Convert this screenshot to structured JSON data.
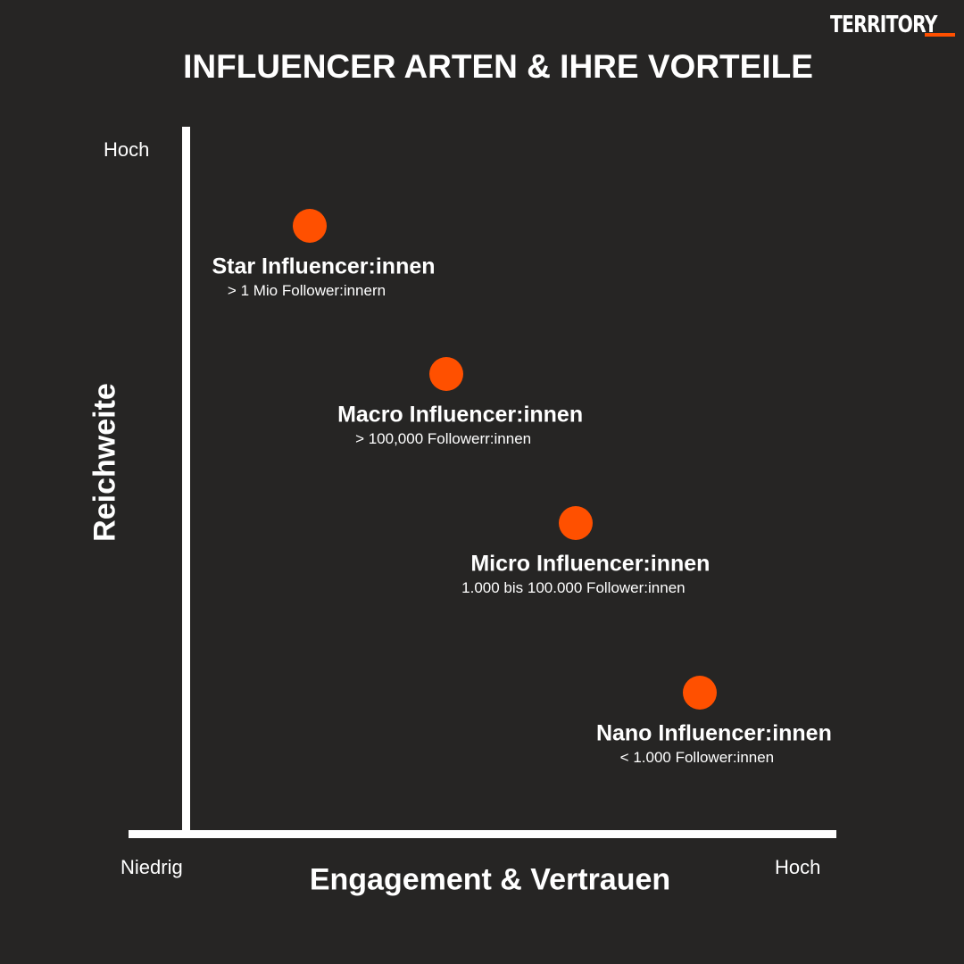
{
  "brand": {
    "logo_text": "TERRITORY",
    "accent": "#ff5000"
  },
  "colors": {
    "background": "#262524",
    "axis": "#ffffff",
    "marker": "#ff5000",
    "text": "#ffffff"
  },
  "chart_data": {
    "type": "scatter",
    "title": "INFLUENCER ARTEN & IHRE VORTEILE",
    "xlabel": "Engagement & Vertrauen",
    "ylabel": "Reichweite",
    "x_ticks": {
      "low": "Niedrig",
      "high": "Hoch"
    },
    "y_ticks": {
      "high": "Hoch"
    },
    "xlim": [
      0,
      1
    ],
    "ylim": [
      0,
      1
    ],
    "grid": false,
    "points": [
      {
        "name": "Star Influencer:innen",
        "detail": "> 1 Mio Follower:innern",
        "x": 0.19,
        "y": 0.86
      },
      {
        "name": "Macro Influencer:innen",
        "detail": "> 100,000 Followerr:innen",
        "x": 0.4,
        "y": 0.65
      },
      {
        "name": "Micro Influencer:innen",
        "detail": "1.000 bis 100.000 Follower:innen",
        "x": 0.6,
        "y": 0.44
      },
      {
        "name": "Nano Influencer:innen",
        "detail": "< 1.000 Follower:innen",
        "x": 0.79,
        "y": 0.2
      }
    ]
  }
}
